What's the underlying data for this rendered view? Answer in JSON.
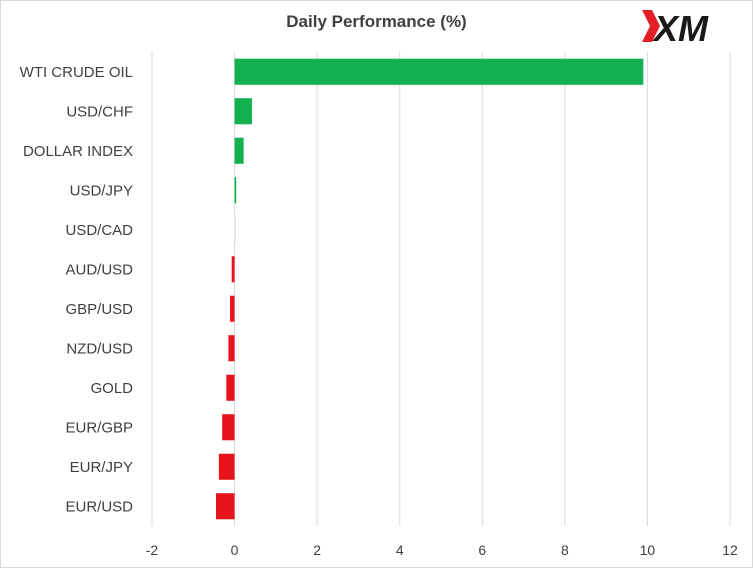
{
  "chart_data": {
    "type": "bar",
    "orientation": "horizontal",
    "title": "Daily Performance (%)",
    "categories": [
      "WTI CRUDE OIL",
      "USD/CHF",
      "DOLLAR INDEX",
      "USD/JPY",
      "USD/CAD",
      "AUD/USD",
      "GBP/USD",
      "NZD/USD",
      "GOLD",
      "EUR/GBP",
      "EUR/JPY",
      "EUR/USD"
    ],
    "values": [
      9.9,
      0.42,
      0.22,
      0.04,
      0.0,
      -0.07,
      -0.11,
      -0.15,
      -0.2,
      -0.3,
      -0.38,
      -0.45
    ],
    "xlim": [
      -2,
      12
    ],
    "xticks": [
      "-2",
      "0",
      "2",
      "4",
      "6",
      "8",
      "10",
      "12"
    ],
    "xtick_values": [
      -2,
      0,
      2,
      4,
      6,
      8,
      10,
      12
    ],
    "grid": "vertical",
    "legend": "none",
    "colors": {
      "positive": "#12b04f",
      "negative": "#e8141c",
      "zero": "#e6e6e6",
      "grid": "#d9d9d9",
      "text": "#404040"
    }
  },
  "logo": {
    "text": "XM",
    "colors": {
      "red": "#e31e24",
      "black": "#1a1a1a"
    }
  }
}
